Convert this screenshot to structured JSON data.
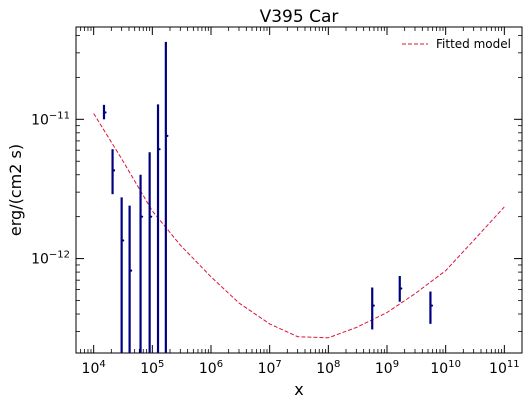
{
  "chart_data": {
    "type": "scatter",
    "title": "V395 Car",
    "xlabel": "x",
    "ylabel": "erg/(cm2 s)",
    "xscale": "log",
    "yscale": "log",
    "xlim": [
      5000,
      200000000000
    ],
    "ylim": [
      2.1e-13,
      4.6e-11
    ],
    "x_ticks": [
      {
        "value": 10000,
        "base": "10",
        "exp": "4"
      },
      {
        "value": 100000,
        "base": "10",
        "exp": "5"
      },
      {
        "value": 1000000,
        "base": "10",
        "exp": "6"
      },
      {
        "value": 10000000,
        "base": "10",
        "exp": "7"
      },
      {
        "value": 100000000,
        "base": "10",
        "exp": "8"
      },
      {
        "value": 1000000000,
        "base": "10",
        "exp": "9"
      },
      {
        "value": 10000000000,
        "base": "10",
        "exp": "10"
      },
      {
        "value": 100000000000,
        "base": "10",
        "exp": "11"
      }
    ],
    "y_ticks": [
      {
        "value": 1e-12,
        "base": "10",
        "exp": "−12"
      },
      {
        "value": 1e-11,
        "base": "10",
        "exp": "−11"
      }
    ],
    "legend": {
      "position": "top-right",
      "entries": [
        "Fitted model"
      ]
    },
    "colors": {
      "data": "#000080",
      "model": "#dc143c",
      "axes": "#000000"
    },
    "series": [
      {
        "kind": "errorbar",
        "points": [
          {
            "x": 15000,
            "y": 1.12e-11,
            "ylo": 1e-11,
            "yhi": 1.27e-11
          },
          {
            "x": 21000,
            "y": 4.3e-12,
            "ylo": 2.9e-12,
            "yhi": 6.1e-12
          },
          {
            "x": 30000,
            "y": 1.35e-12,
            "ylo": 2.1e-13,
            "yhi": 2.75e-12
          },
          {
            "x": 41000,
            "y": 8.2e-13,
            "ylo": 2.1e-13,
            "yhi": 2.4e-12
          },
          {
            "x": 63000,
            "y": 2e-12,
            "ylo": 2.1e-13,
            "yhi": 4e-12
          },
          {
            "x": 90000,
            "y": 2e-12,
            "ylo": 2.1e-13,
            "yhi": 5.8e-12
          },
          {
            "x": 125000,
            "y": 6.1e-12,
            "ylo": 2.1e-13,
            "yhi": 1.28e-11
          },
          {
            "x": 170000,
            "y": 7.6e-12,
            "ylo": 2.1e-13,
            "yhi": 3.6e-11
          },
          {
            "x": 560000000,
            "y": 4.6e-13,
            "ylo": 3.1e-13,
            "yhi": 6.2e-13
          },
          {
            "x": 1650000000,
            "y": 6.1e-13,
            "ylo": 4.9e-13,
            "yhi": 7.5e-13
          },
          {
            "x": 5500000000,
            "y": 4.6e-13,
            "ylo": 3.4e-13,
            "yhi": 5.8e-13
          }
        ]
      },
      {
        "name": "Fitted model",
        "kind": "line",
        "style": "dashed",
        "x": [
          10000,
          30000,
          100000,
          300000,
          1000000,
          3000000,
          10000000,
          30000000,
          100000000,
          300000000,
          1000000000,
          3000000000,
          10000000000,
          30000000000,
          100000000000
        ],
        "y": [
          1.1e-11,
          5.2e-12,
          2.2e-12,
          1.25e-12,
          7.4e-13,
          4.8e-13,
          3.4e-13,
          2.75e-13,
          2.7e-13,
          3.2e-13,
          4.1e-13,
          5.6e-13,
          8.2e-13,
          1.35e-12,
          2.35e-12
        ]
      }
    ]
  }
}
